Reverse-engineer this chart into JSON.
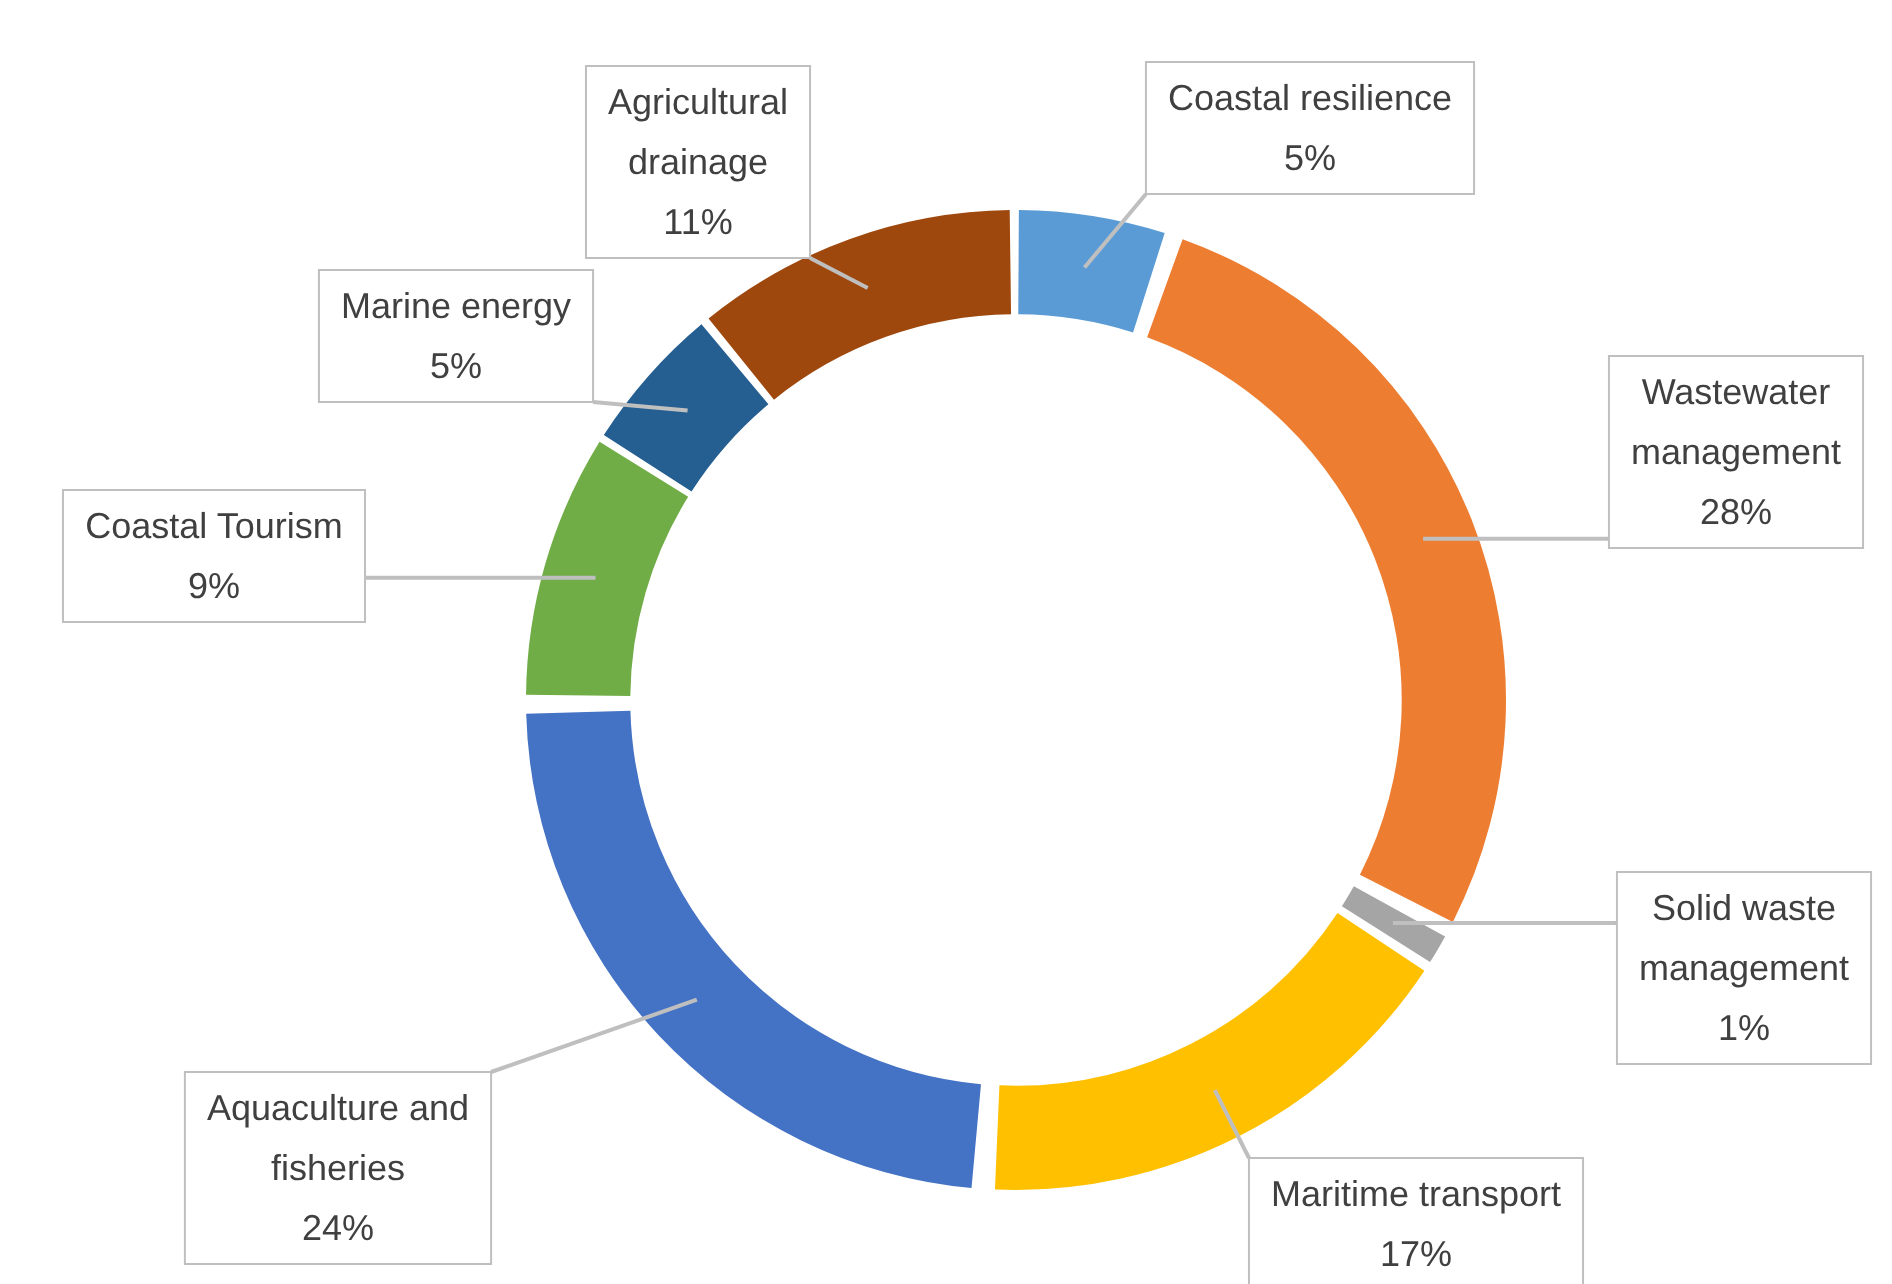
{
  "chart_data": {
    "type": "donut",
    "categories": [
      "Coastal resilience",
      "Wastewater management",
      "Solid waste management",
      "Maritime transport",
      "Aquaculture and fisheries",
      "Coastal Tourism",
      "Marine energy",
      "Agricultural drainage"
    ],
    "values": [
      5,
      28,
      1,
      17,
      24,
      9,
      5,
      11
    ],
    "value_labels": [
      "5%",
      "28%",
      "1%",
      "17%",
      "24%",
      "9%",
      "5%",
      "11%"
    ],
    "colors": [
      "#5b9bd5",
      "#ed7d31",
      "#a5a5a5",
      "#ffc000",
      "#4472c4",
      "#70ad47",
      "#255e91",
      "#9e480e"
    ]
  }
}
